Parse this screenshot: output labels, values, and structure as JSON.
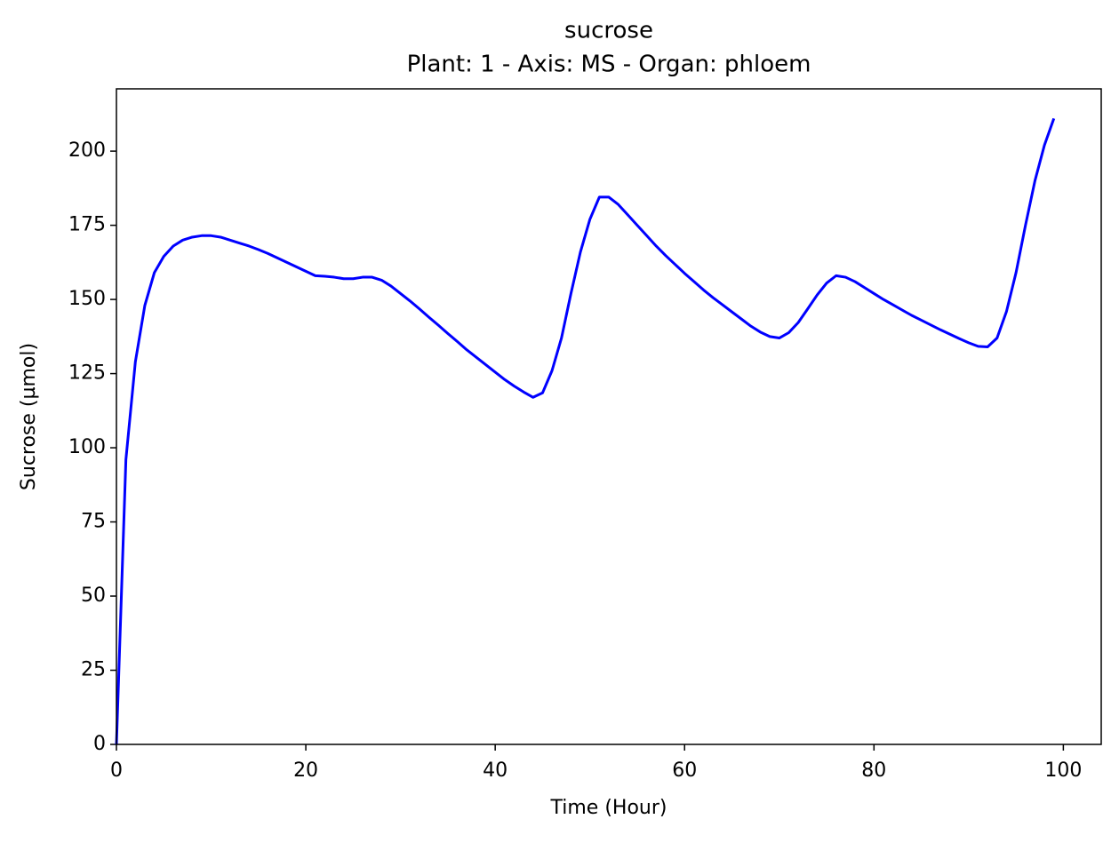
{
  "chart_data": {
    "type": "line",
    "title": "sucrose",
    "subtitle": "Plant: 1 - Axis: MS - Organ: phloem",
    "x_label": "Time (Hour)",
    "y_label": "Sucrose (µmol)",
    "x": [
      0,
      1,
      2,
      3,
      4,
      5,
      6,
      7,
      8,
      9,
      10,
      11,
      12,
      13,
      14,
      15,
      16,
      17,
      18,
      19,
      20,
      21,
      22,
      23,
      24,
      25,
      26,
      27,
      28,
      29,
      30,
      31,
      32,
      33,
      34,
      35,
      36,
      37,
      38,
      39,
      40,
      41,
      42,
      43,
      44,
      45,
      46,
      47,
      48,
      49,
      50,
      51,
      52,
      53,
      54,
      55,
      56,
      57,
      58,
      59,
      60,
      61,
      62,
      63,
      64,
      65,
      66,
      67,
      68,
      69,
      70,
      71,
      72,
      73,
      74,
      75,
      76,
      77,
      78,
      79,
      80,
      81,
      82,
      83,
      84,
      85,
      86,
      87,
      88,
      89,
      90,
      91,
      92,
      93,
      94,
      95,
      96,
      97,
      98,
      99
    ],
    "series": [
      {
        "name": "sucrose",
        "color": "#0000ff",
        "values": [
          0,
          96,
          129,
          148,
          159,
          164.5,
          168,
          170,
          171,
          171.5,
          171.5,
          171,
          170,
          169,
          168,
          166.8,
          165.5,
          164,
          162.5,
          161,
          159.5,
          158,
          157.8,
          157.5,
          157,
          157,
          157.5,
          157.5,
          156.5,
          154.5,
          152,
          149.5,
          146.8,
          144,
          141.3,
          138.5,
          135.8,
          133,
          130.5,
          128,
          125.5,
          123,
          120.8,
          118.8,
          117,
          118.5,
          126,
          137,
          152,
          166,
          177,
          184.5,
          184.5,
          182,
          178.5,
          175,
          171.5,
          168,
          164.8,
          161.8,
          158.8,
          156,
          153.2,
          150.6,
          148.2,
          145.8,
          143.4,
          141,
          139,
          137.5,
          137,
          138.8,
          142.2,
          146.8,
          151.5,
          155.5,
          158,
          157.5,
          156,
          154,
          152,
          150,
          148.2,
          146.4,
          144.6,
          143,
          141.4,
          139.8,
          138.3,
          136.8,
          135.4,
          134.2,
          134,
          137,
          146,
          159,
          175,
          190,
          202,
          211
        ]
      }
    ],
    "xlim": [
      0,
      104
    ],
    "ylim": [
      0,
      221
    ],
    "xticks": [
      0,
      20,
      40,
      60,
      80,
      100
    ],
    "yticks": [
      0,
      25,
      50,
      75,
      100,
      125,
      150,
      175,
      200
    ],
    "grid": false
  }
}
